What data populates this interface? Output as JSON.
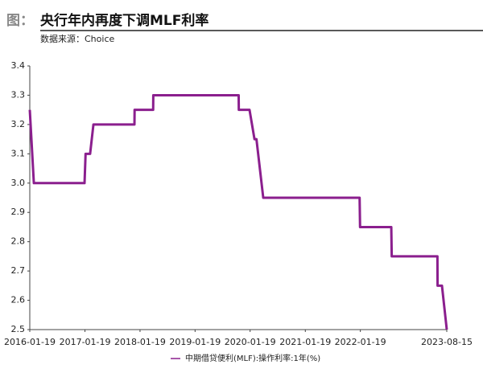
{
  "header": {
    "label": "图：",
    "title": "央行年内再度下调MLF利率",
    "source": "数据来源：Choice"
  },
  "chart_data": {
    "type": "line",
    "series": [
      {
        "name": "中期借贷便利(MLF):操作利率:1年(%)",
        "color": "#8b1f8e",
        "x": [
          "2016-01-19",
          "2016-02-15",
          "2017-01-16",
          "2017-01-23",
          "2017-02-22",
          "2017-03-16",
          "2017-12-13",
          "2017-12-14",
          "2018-04-16",
          "2018-04-17",
          "2019-11-04",
          "2019-11-05",
          "2020-01-15",
          "2020-02-17",
          "2020-03-01",
          "2020-04-15",
          "2022-01-14",
          "2022-01-17",
          "2022-08-12",
          "2022-08-15",
          "2023-06-14",
          "2023-06-15",
          "2023-07-14",
          "2023-08-15"
        ],
        "values": [
          3.25,
          3.0,
          3.0,
          3.1,
          3.1,
          3.2,
          3.2,
          3.25,
          3.25,
          3.3,
          3.3,
          3.25,
          3.25,
          3.15,
          3.15,
          2.95,
          2.95,
          2.85,
          2.85,
          2.75,
          2.75,
          2.65,
          2.65,
          2.5
        ]
      }
    ],
    "xlim": [
      "2016-01-19",
      "2023-08-15"
    ],
    "xticks": [
      "2016-01-19",
      "2017-01-19",
      "2018-01-19",
      "2019-01-19",
      "2020-01-19",
      "2021-01-19",
      "2022-01-19",
      "2023-08-15"
    ],
    "ylim": [
      2.5,
      3.4
    ],
    "yticks": [
      2.5,
      2.6,
      2.7,
      2.8,
      2.9,
      {
        "value": 3,
        "label": "3.0"
      },
      3.1,
      3.2,
      3.3,
      3.4
    ],
    "grid": false
  }
}
